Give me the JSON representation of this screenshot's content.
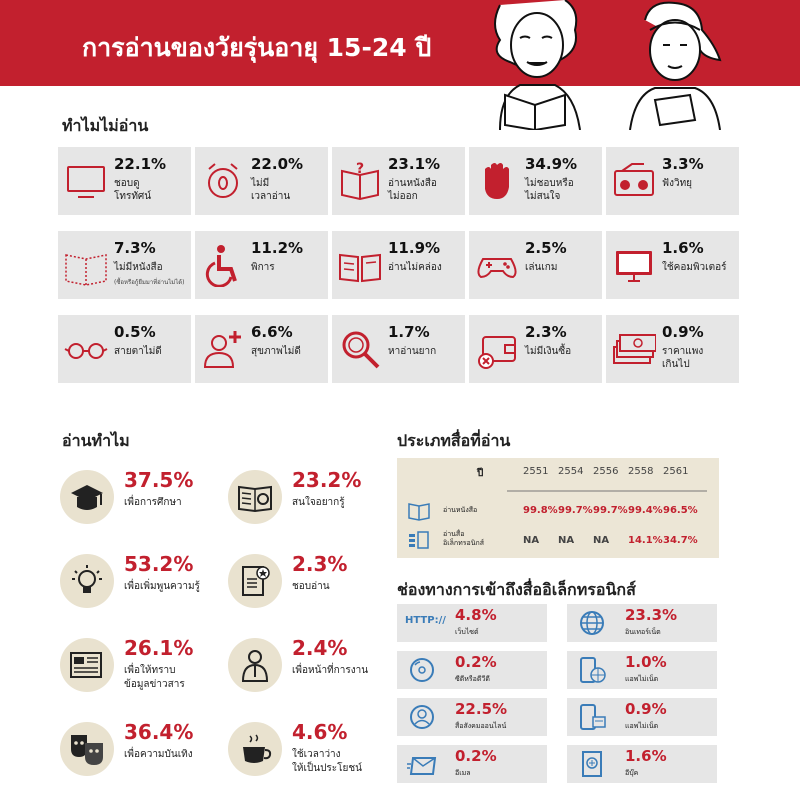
{
  "header": {
    "title": "การอ่านของวัยรุ่นอายุ 15-24 ปี"
  },
  "colors": {
    "accent": "#c2202e",
    "card_bg": "#e6e6e6",
    "circle_bg": "#e9e2cf",
    "table_bg": "#ece6d6"
  },
  "why_not": {
    "title": "ทำไมไม่อ่าน",
    "items": [
      {
        "icon": "tv-icon",
        "pct": "22.1%",
        "label": "ชอบดู\nโทรทัศน์"
      },
      {
        "icon": "alarm-clock-icon",
        "pct": "22.0%",
        "label": "ไม่มี\nเวลาอ่าน"
      },
      {
        "icon": "book-question-icon",
        "pct": "23.1%",
        "label": "อ่านหนังสือ\nไม่ออก"
      },
      {
        "icon": "hand-stop-icon",
        "pct": "34.9%",
        "label": "ไม่ชอบหรือ\nไม่สนใจ"
      },
      {
        "icon": "radio-icon",
        "pct": "3.3%",
        "label": "ฟังวิทยุ"
      },
      {
        "icon": "book-outline-icon",
        "pct": "7.3%",
        "label": "ไม่มีหนังสือ",
        "note": "(ซื้อหรือกู้ยืมมาที่อ่านไม่ได้)"
      },
      {
        "icon": "wheelchair-icon",
        "pct": "11.2%",
        "label": "พิการ"
      },
      {
        "icon": "reading-difficulty-icon",
        "pct": "11.9%",
        "label": "อ่านไม่คล่อง"
      },
      {
        "icon": "gamepad-icon",
        "pct": "2.5%",
        "label": "เล่นเกม"
      },
      {
        "icon": "monitor-icon",
        "pct": "1.6%",
        "label": "ใช้คอมพิวเตอร์"
      },
      {
        "icon": "glasses-icon",
        "pct": "0.5%",
        "label": "สายตาไม่ดี"
      },
      {
        "icon": "sick-person-icon",
        "pct": "6.6%",
        "label": "สุขภาพไม่ดี"
      },
      {
        "icon": "magnifier-icon",
        "pct": "1.7%",
        "label": "หาอ่านยาก"
      },
      {
        "icon": "empty-wallet-icon",
        "pct": "2.3%",
        "label": "ไม่มีเงินซื้อ"
      },
      {
        "icon": "money-stack-icon",
        "pct": "0.9%",
        "label": "ราคาแพง\nเกินไป"
      }
    ]
  },
  "why_read": {
    "title": "อ่านทำไม",
    "items": [
      {
        "icon": "graduation-cap-icon",
        "pct": "37.5%",
        "label": "เพื่อการศึกษา"
      },
      {
        "icon": "open-book-search-icon",
        "pct": "23.2%",
        "label": "สนใจอยากรู้"
      },
      {
        "icon": "light-bulb-icon",
        "pct": "53.2%",
        "label": "เพื่อเพิ่มพูนความรู้"
      },
      {
        "icon": "star-document-icon",
        "pct": "2.3%",
        "label": "ชอบอ่าน"
      },
      {
        "icon": "newspaper-icon",
        "pct": "26.1%",
        "label": "เพื่อให้ทราบ\nข้อมูลข่าวสาร"
      },
      {
        "icon": "worker-icon",
        "pct": "2.4%",
        "label": "เพื่อหน้าที่การงาน"
      },
      {
        "icon": "theater-masks-icon",
        "pct": "36.4%",
        "label": "เพื่อความบันเทิง"
      },
      {
        "icon": "tea-cup-icon",
        "pct": "4.6%",
        "label": "ใช้เวลาว่าง\nให้เป็นประโยชน์"
      }
    ]
  },
  "media_types": {
    "title": "ประเภทสื่อที่อ่าน",
    "year_label": "ปี",
    "years": [
      "2551",
      "2554",
      "2556",
      "2558",
      "2561"
    ],
    "rows": [
      {
        "icon": "book-icon",
        "label": "อ่านหนังสือ",
        "values": [
          "99.8%",
          "99.7%",
          "99.7%",
          "99.4%",
          "96.5%"
        ]
      },
      {
        "icon": "ebook-icon",
        "label": "อ่านสื่อ\nอิเล็กทรอนิกส์",
        "values": [
          "NA",
          "NA",
          "NA",
          "14.1%",
          "34.7%"
        ]
      }
    ]
  },
  "channels": {
    "title": "ช่องทางการเข้าถึงสื่ออิเล็กทรอนิกส์",
    "items": [
      {
        "icon": "http-icon",
        "icon_text": "HTTP://",
        "pct": "4.8%",
        "label": "เว็บไซต์"
      },
      {
        "icon": "globe-icon",
        "pct": "23.3%",
        "label": "อินเทอร์เน็ต"
      },
      {
        "icon": "cd-icon",
        "pct": "0.2%",
        "label": "ซีดีหรือดีวีดี"
      },
      {
        "icon": "phone-globe-icon",
        "pct": "1.0%",
        "label": "แอพไม่เน็ต"
      },
      {
        "icon": "social-user-icon",
        "pct": "22.5%",
        "label": "สื่อสังคมออนไลน์"
      },
      {
        "icon": "phone-app-icon",
        "pct": "0.9%",
        "label": "แอพไม่เน็ต"
      },
      {
        "icon": "email-icon",
        "pct": "0.2%",
        "label": "อีเมล"
      },
      {
        "icon": "ebook-reader-icon",
        "pct": "1.6%",
        "label": "อีบุ๊ค"
      }
    ]
  }
}
